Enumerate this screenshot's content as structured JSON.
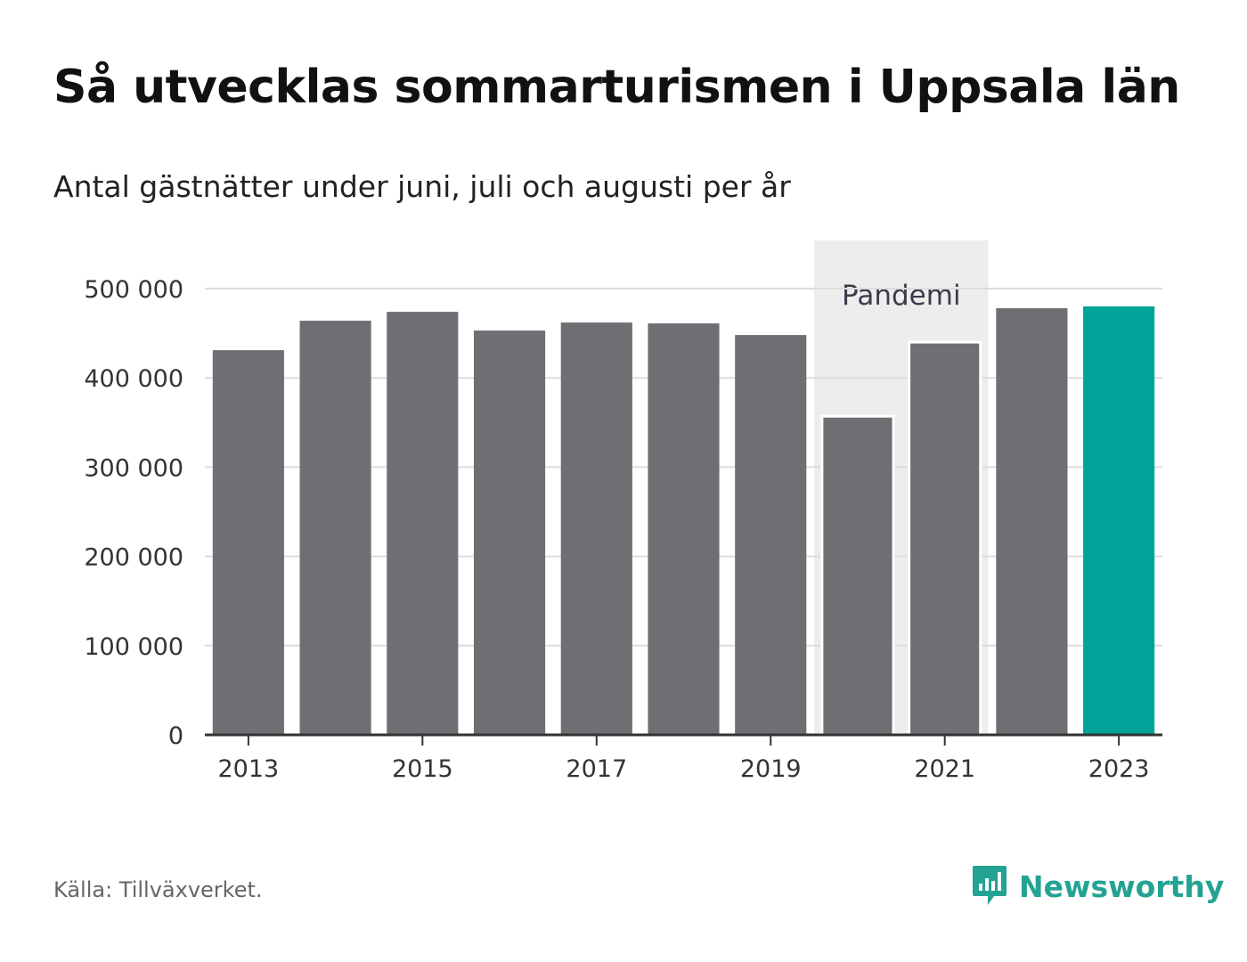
{
  "title": "Så utvecklas sommarturismen i Uppsala län",
  "subtitle": "Antal gästnätter under juni, juli och augusti per år",
  "source": "Källa: Tillväxverket.",
  "brand": {
    "name": "Newsworthy",
    "icon": "newsworthy-logo-icon",
    "color": "#23a393"
  },
  "colors": {
    "bar": "#6f6e73",
    "highlight": "#00a398",
    "shade": "#ededed"
  },
  "chart_data": {
    "type": "bar",
    "categories": [
      "2013",
      "2014",
      "2015",
      "2016",
      "2017",
      "2018",
      "2019",
      "2020",
      "2021",
      "2022",
      "2023"
    ],
    "values": [
      431000,
      464000,
      474000,
      453000,
      462000,
      461000,
      448000,
      357000,
      440000,
      478000,
      480000
    ],
    "highlight_index": 10,
    "ylim": [
      0,
      500000
    ],
    "yticks": [
      0,
      100000,
      200000,
      300000,
      400000,
      500000
    ],
    "ytick_labels": [
      "0",
      "100 000",
      "200 000",
      "300 000",
      "400 000",
      "500 000"
    ],
    "xtick_labels": [
      "2013",
      "2015",
      "2017",
      "2019",
      "2021",
      "2023"
    ],
    "shaded_region": {
      "label": "Pandemi",
      "from": "2020",
      "to": "2021"
    },
    "grid": true,
    "legend": "none"
  }
}
